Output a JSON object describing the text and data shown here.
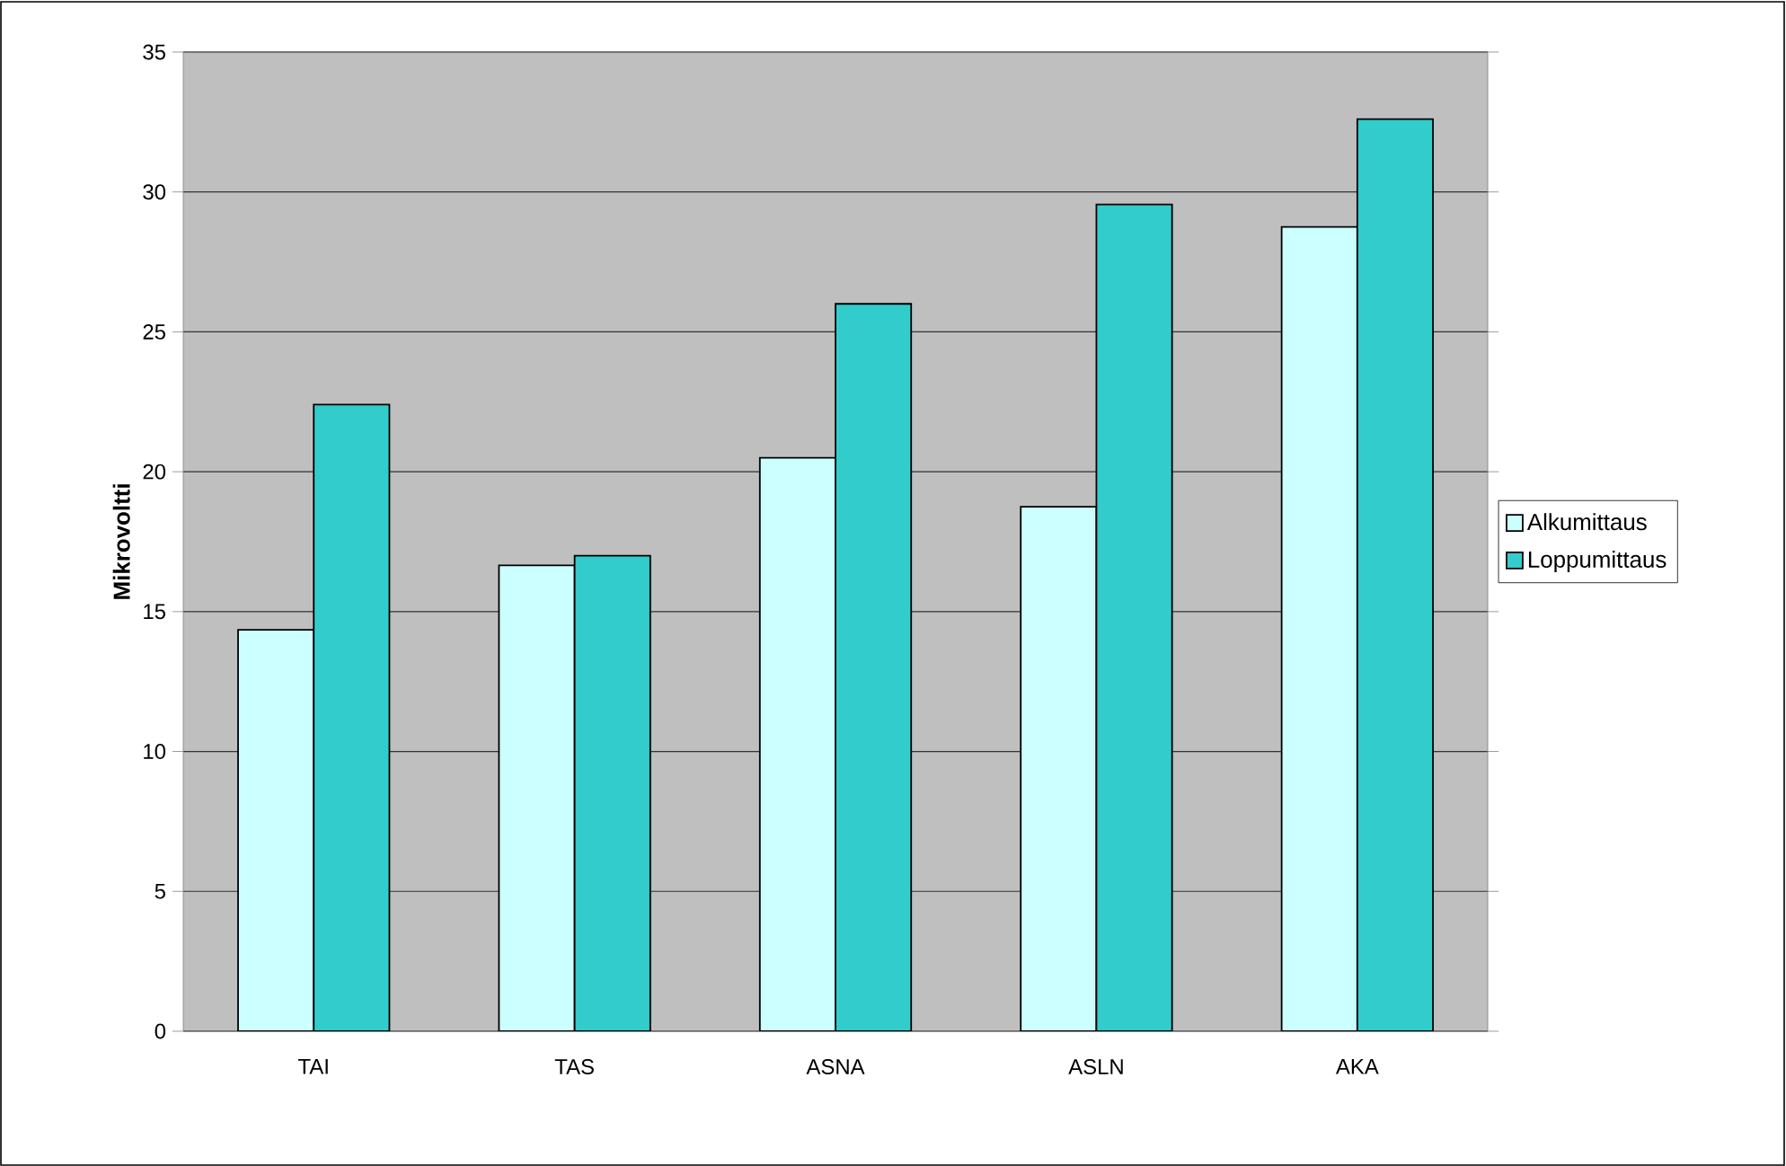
{
  "chart_data": {
    "type": "bar",
    "ylabel": "Mikrovoltti",
    "categories": [
      "TAI",
      "TAS",
      "ASNA",
      "ASLN",
      "AKA"
    ],
    "series": [
      {
        "name": "Alkumittaus",
        "color": "#ccffff",
        "values": [
          14.35,
          16.65,
          20.5,
          18.75,
          28.75
        ]
      },
      {
        "name": "Loppumittaus",
        "color": "#33cccc",
        "values": [
          22.4,
          17.0,
          26.0,
          29.55,
          32.6
        ]
      }
    ],
    "ylim": [
      0,
      35
    ],
    "yticks": [
      0,
      5,
      10,
      15,
      20,
      25,
      30,
      35
    ],
    "grid": "y",
    "legend": "right"
  }
}
